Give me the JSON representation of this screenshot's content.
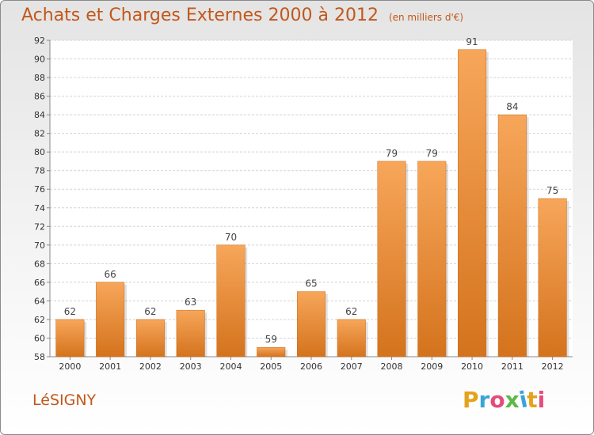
{
  "chart_data": {
    "type": "bar",
    "title": "Achats et Charges Externes 2000 à 2012",
    "subtitle": "(en milliers d'€)",
    "categories": [
      "2000",
      "2001",
      "2002",
      "2003",
      "2004",
      "2005",
      "2006",
      "2007",
      "2008",
      "2009",
      "2010",
      "2011",
      "2012"
    ],
    "values": [
      62,
      66,
      62,
      63,
      70,
      59,
      65,
      62,
      79,
      79,
      91,
      84,
      75
    ],
    "ylim": [
      58,
      92
    ],
    "yticks": [
      58,
      60,
      62,
      64,
      66,
      68,
      70,
      72,
      74,
      76,
      78,
      80,
      82,
      84,
      86,
      88,
      90,
      92
    ],
    "grid": true,
    "bar_color_top": "#f7a65a",
    "bar_color_bottom": "#d4731d"
  },
  "commune": "LéSIGNY",
  "logo": {
    "text": "Proxiti",
    "colors": [
      "#e5a21c",
      "#3aa5d8",
      "#e54b7b",
      "#5db84a",
      "#3aa5d8",
      "#e5a21c",
      "#e54b7b"
    ]
  }
}
